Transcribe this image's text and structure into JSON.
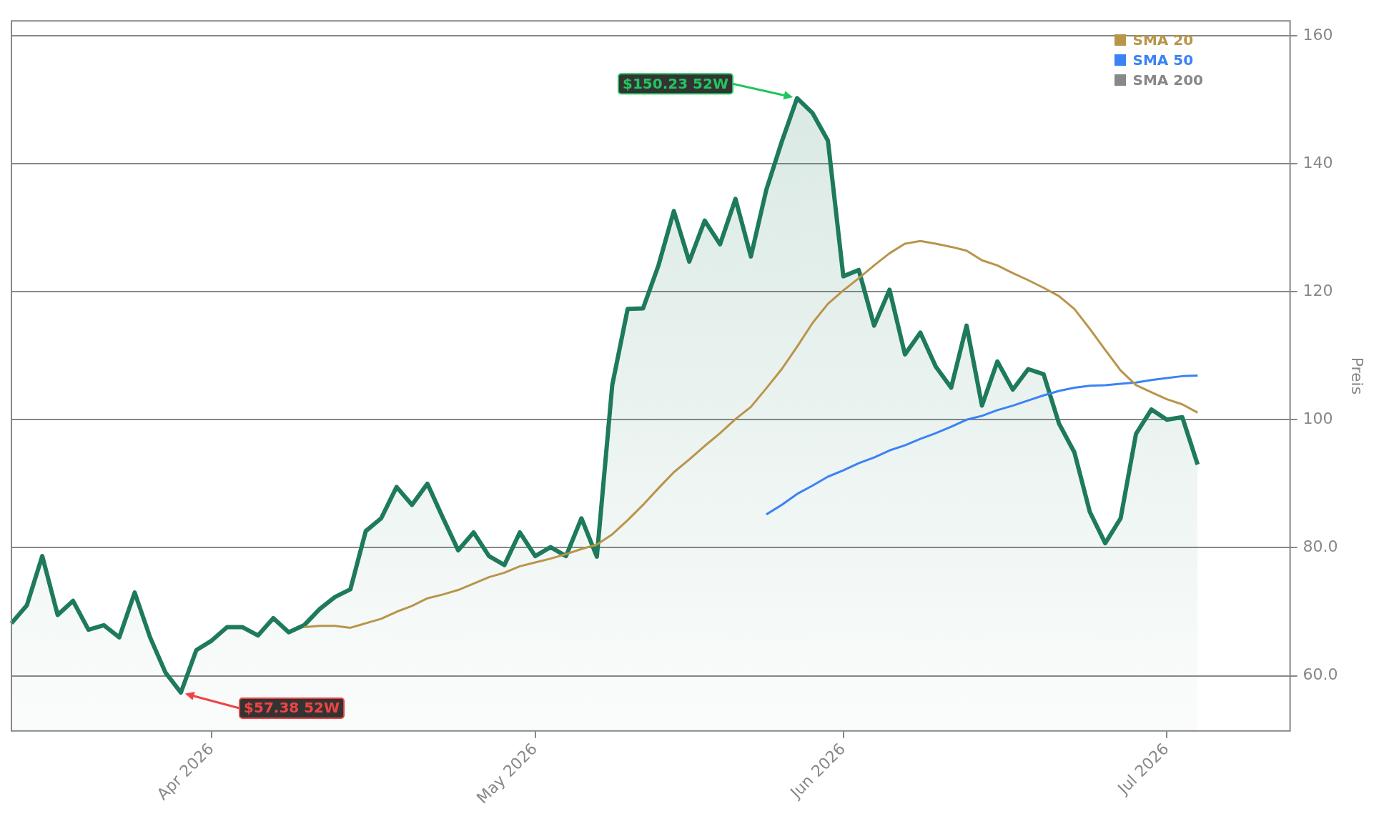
{
  "chart_data": {
    "type": "line",
    "ylabel": "Preis",
    "categories": [
      null,
      null,
      null,
      null,
      null,
      null,
      null,
      null,
      null,
      null,
      null,
      null,
      null,
      "Apr 2026",
      null,
      null,
      null,
      null,
      null,
      null,
      null,
      null,
      null,
      null,
      null,
      null,
      null,
      null,
      null,
      null,
      null,
      null,
      null,
      null,
      "May 2026",
      null,
      null,
      null,
      null,
      null,
      null,
      null,
      null,
      null,
      null,
      null,
      null,
      null,
      null,
      null,
      null,
      null,
      null,
      null,
      "Jun 2026",
      null,
      null,
      null,
      null,
      null,
      null,
      null,
      null,
      null,
      null,
      null,
      null,
      null,
      null,
      null,
      null,
      null,
      null,
      null,
      null,
      "Jul 2026",
      null,
      null,
      null,
      null,
      null,
      null,
      null,
      null
    ],
    "series": [
      {
        "type": "area",
        "color": "#1e7a5c",
        "values": [
          68.2,
          71.0,
          78.7,
          69.5,
          71.7,
          67.2,
          67.9,
          66.0,
          73.0,
          66.0,
          60.5,
          57.38,
          64.0,
          65.5,
          67.6,
          67.6,
          66.3,
          69.0,
          66.8,
          67.9,
          70.4,
          72.3,
          73.5,
          82.6,
          84.6,
          89.5,
          86.7,
          90.0,
          84.7,
          79.6,
          82.4,
          78.7,
          77.3,
          82.4,
          78.7,
          80.1,
          78.7,
          84.6,
          78.6,
          105.4,
          117.3,
          117.4,
          124.1,
          132.6,
          124.7,
          131.1,
          127.4,
          134.5,
          125.5,
          135.9,
          143.4,
          150.23,
          147.9,
          143.6,
          122.4,
          123.4,
          114.7,
          120.3,
          110.2,
          113.6,
          108.3,
          105.0,
          114.7,
          102.2,
          109.1,
          104.7,
          107.9,
          107.1,
          99.4,
          94.9,
          85.6,
          80.7,
          84.6,
          97.8,
          101.6,
          100.0,
          100.4,
          93.0,
          null,
          null,
          null,
          null,
          null,
          null
        ]
      },
      {
        "name": "SMA 20",
        "color": "#b8954a",
        "values": [
          null,
          null,
          null,
          null,
          null,
          null,
          null,
          null,
          null,
          null,
          null,
          null,
          null,
          null,
          null,
          null,
          null,
          null,
          null,
          67.6,
          67.8,
          67.8,
          67.5,
          68.2,
          68.9,
          70.0,
          70.9,
          72.1,
          72.7,
          73.4,
          74.4,
          75.4,
          76.1,
          77.1,
          77.7,
          78.3,
          79.0,
          79.8,
          80.5,
          82.1,
          84.3,
          86.7,
          89.3,
          91.8,
          93.8,
          95.9,
          97.9,
          100.1,
          102.0,
          104.9,
          107.9,
          111.4,
          115.1,
          118.1,
          120.2,
          122.1,
          124.1,
          126.0,
          127.5,
          127.9,
          127.5,
          127.0,
          126.4,
          124.9,
          124.1,
          122.9,
          121.8,
          120.6,
          119.3,
          117.3,
          114.2,
          110.9,
          107.7,
          105.4,
          104.3,
          103.2,
          102.4,
          101.1,
          null,
          null,
          null,
          null,
          null,
          null
        ]
      },
      {
        "name": "SMA 50",
        "color": "#3b82f6",
        "values": [
          null,
          null,
          null,
          null,
          null,
          null,
          null,
          null,
          null,
          null,
          null,
          null,
          null,
          null,
          null,
          null,
          null,
          null,
          null,
          null,
          null,
          null,
          null,
          null,
          null,
          null,
          null,
          null,
          null,
          null,
          null,
          null,
          null,
          null,
          null,
          null,
          null,
          null,
          null,
          null,
          null,
          null,
          null,
          null,
          null,
          null,
          null,
          null,
          null,
          85.2,
          86.7,
          88.4,
          89.7,
          91.1,
          92.1,
          93.2,
          94.1,
          95.2,
          96.0,
          97.0,
          97.9,
          98.9,
          100.0,
          100.6,
          101.5,
          102.2,
          103.0,
          103.8,
          104.5,
          105.0,
          105.3,
          105.4,
          105.6,
          105.8,
          106.2,
          106.5,
          106.8,
          106.9,
          null,
          null,
          null,
          null,
          null,
          null
        ]
      },
      {
        "name": "SMA 200",
        "color": "#888888",
        "values": [
          null,
          null,
          null,
          null,
          null,
          null,
          null,
          null,
          null,
          null,
          null,
          null,
          null,
          null,
          null,
          null,
          null,
          null,
          null,
          null,
          null,
          null,
          null,
          null,
          null,
          null,
          null,
          null,
          null,
          null,
          null,
          null,
          null,
          null,
          null,
          null,
          null,
          null,
          null,
          null,
          null,
          null,
          null,
          null,
          null,
          null,
          null,
          null,
          null,
          null,
          null,
          null,
          null,
          null,
          null,
          null,
          null,
          null,
          null,
          null,
          null,
          null,
          null,
          null,
          null,
          null,
          null,
          null,
          null,
          null,
          null,
          null,
          null,
          null,
          null,
          null,
          null,
          null,
          null,
          null,
          null,
          null,
          null,
          null
        ]
      }
    ],
    "ylim": [
      51.4,
      162.3
    ],
    "yticks": [
      {
        "value": 60,
        "label": "60.0"
      },
      {
        "value": 80,
        "label": "80.0"
      },
      100,
      120,
      140,
      160
    ],
    "grid": "y",
    "legend": "top right",
    "annotations": [
      "$150.23 52W",
      "$57.38 52W"
    ]
  }
}
